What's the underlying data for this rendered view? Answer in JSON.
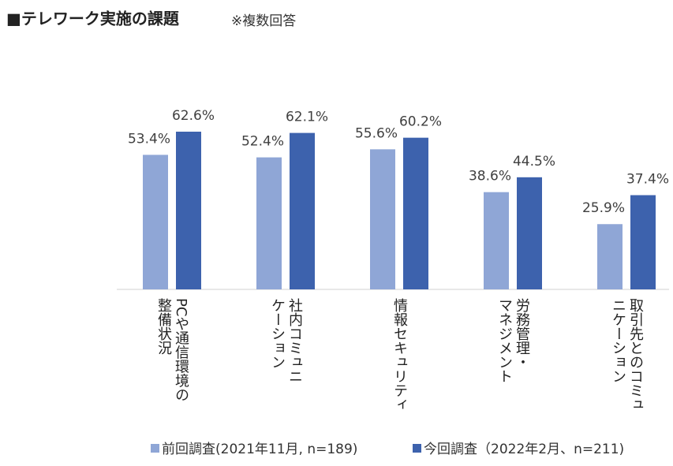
{
  "chart_data": {
    "type": "bar",
    "title": "■テレワーク実施の課題",
    "subtitle": "※複数回答",
    "categories": [
      "PCや通信環境の\n整備状況",
      "社内コミュニ\nケーション",
      "情報セキュリティ",
      "労務管理・\nマネジメント",
      "取引先とのコミュ\nニケーション"
    ],
    "series": [
      {
        "name": "前回調査(2021年11月, n=189)",
        "color": "#8fa6d6",
        "values": [
          53.4,
          52.4,
          55.6,
          38.6,
          25.9
        ],
        "value_labels": [
          "53.4%",
          "52.4%",
          "55.6%",
          "38.6%",
          "25.9%"
        ]
      },
      {
        "name": "今回調査（2022年2月、n=211)",
        "color": "#3d62ad",
        "values": [
          62.6,
          62.1,
          60.2,
          44.5,
          37.4
        ],
        "value_labels": [
          "62.6%",
          "62.1%",
          "60.2%",
          "44.5%",
          "37.4%"
        ]
      }
    ]
  }
}
